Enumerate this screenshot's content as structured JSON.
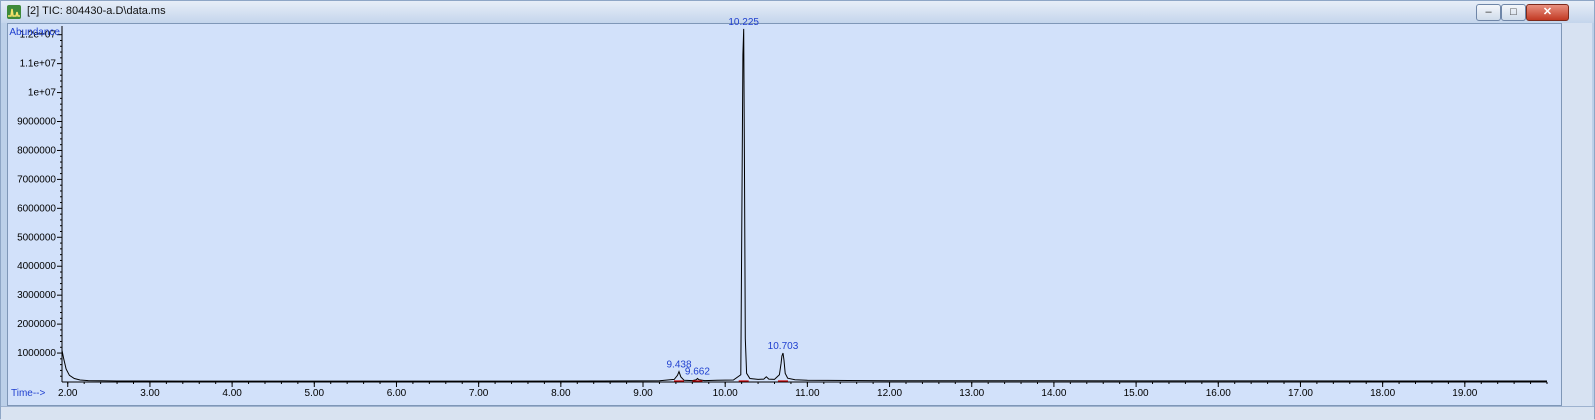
{
  "window": {
    "title": "[2] TIC: 804430-a.D\\data.ms",
    "controls": {
      "minimize": "–",
      "maximize": "□",
      "close": "✕"
    },
    "icons": {
      "app": "chromatogram-app-icon"
    }
  },
  "chart_data": {
    "type": "line",
    "title": "",
    "xlabel": "Time-->",
    "ylabel": "Abundance",
    "xlim": [
      1.93,
      20.0
    ],
    "ylim": [
      0,
      12300000
    ],
    "x_ticks": [
      "2.00",
      "3.00",
      "4.00",
      "5.00",
      "6.00",
      "7.00",
      "8.00",
      "9.00",
      "10.00",
      "11.00",
      "12.00",
      "13.00",
      "14.00",
      "15.00",
      "16.00",
      "17.00",
      "18.00",
      "19.00"
    ],
    "y_ticks": [
      "1000000",
      "2000000",
      "3000000",
      "4000000",
      "5000000",
      "6000000",
      "7000000",
      "8000000",
      "9000000",
      "1e+07",
      "1.1e+07",
      "1.2e+07"
    ],
    "series": [
      {
        "color": "#000000",
        "x": [
          1.93,
          1.95,
          1.98,
          2.02,
          2.08,
          2.15,
          2.25,
          2.4,
          2.6,
          2.9,
          3.5,
          5.0,
          7.0,
          8.5,
          9.2,
          9.38,
          9.42,
          9.438,
          9.46,
          9.5,
          9.6,
          9.65,
          9.662,
          9.68,
          9.75,
          9.9,
          10.1,
          10.19,
          10.205,
          10.215,
          10.225,
          10.235,
          10.245,
          10.26,
          10.3,
          10.4,
          10.47,
          10.5,
          10.53,
          10.6,
          10.66,
          10.68,
          10.69,
          10.703,
          10.715,
          10.73,
          10.76,
          10.85,
          11.0,
          12.0,
          14.0,
          16.0,
          18.0,
          20.0
        ],
        "y": [
          1100000,
          820000,
          450000,
          230000,
          120000,
          70000,
          50000,
          40000,
          35000,
          33000,
          32000,
          30000,
          30000,
          35000,
          45000,
          90000,
          230000,
          360000,
          180000,
          60000,
          50000,
          80000,
          120000,
          80000,
          50000,
          60000,
          70000,
          250000,
          6500000,
          11300000,
          12200000,
          7200000,
          1500000,
          300000,
          120000,
          90000,
          100000,
          180000,
          100000,
          90000,
          250000,
          650000,
          900000,
          1000000,
          750000,
          300000,
          130000,
          80000,
          60000,
          45000,
          40000,
          38000,
          35000,
          33000
        ]
      }
    ],
    "peaks": [
      {
        "label": "9.438",
        "x": 9.438,
        "y": 360000
      },
      {
        "label": "9.662",
        "x": 9.662,
        "y": 120000
      },
      {
        "label": "10.225",
        "x": 10.225,
        "y": 12200000
      },
      {
        "label": "10.703",
        "x": 10.703,
        "y": 1000000
      }
    ],
    "baseline_color": "#cc0000",
    "background": "#d2e1fa",
    "grid": false,
    "legend": "none"
  }
}
